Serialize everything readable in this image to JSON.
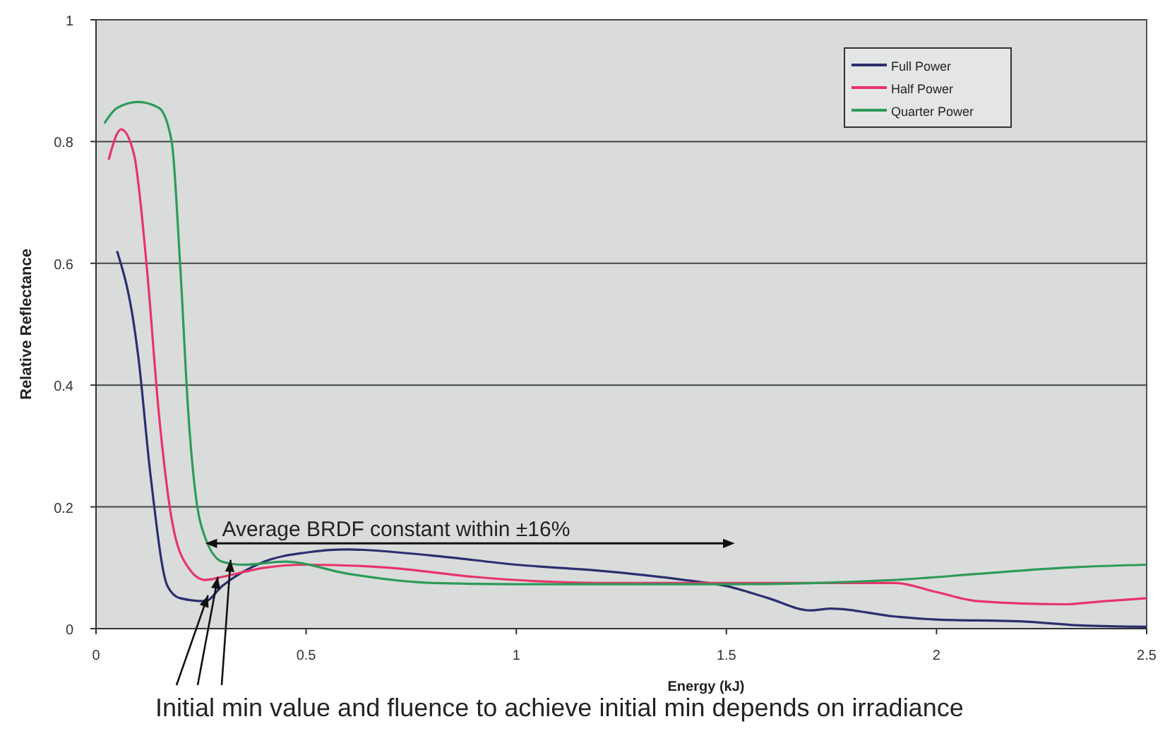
{
  "chart_data": {
    "type": "line",
    "xlabel": "Energy (kJ)",
    "ylabel": "Relative Reflectance",
    "xlim": [
      0,
      2.5
    ],
    "ylim": [
      0,
      1
    ],
    "xticks": [
      0,
      0.5,
      1,
      1.5,
      2,
      2.5
    ],
    "yticks": [
      0,
      0.2,
      0.4,
      0.6,
      0.8,
      1
    ],
    "grid": "y",
    "legend": "top right",
    "marker": "none",
    "line_style": "solid",
    "annotations": [
      "Average BRDF constant within ±16%",
      {
        "text": "Initial min value and fluence to achieve initial min depends on irradiance",
        "x": 0.29,
        "y": 0.085
      }
    ],
    "series": [
      {
        "name": "Full Power",
        "color": "#2a2f6e",
        "x": [
          0.05,
          0.09,
          0.1,
          0.13,
          0.17,
          0.2,
          0.26,
          0.3,
          0.4,
          0.5,
          0.6,
          0.8,
          1.0,
          1.2,
          1.4,
          1.5,
          1.6,
          1.7,
          1.75,
          1.9,
          2.0,
          2.2,
          2.35,
          2.5
        ],
        "values": [
          0.62,
          0.5,
          0.45,
          0.25,
          0.07,
          0.05,
          0.045,
          0.07,
          0.11,
          0.125,
          0.13,
          0.12,
          0.105,
          0.095,
          0.08,
          0.07,
          0.05,
          0.03,
          0.033,
          0.02,
          0.015,
          0.012,
          0.005,
          0.003
        ]
      },
      {
        "name": "Half Power",
        "color": "#e8336b",
        "x": [
          0.03,
          0.06,
          0.09,
          0.12,
          0.15,
          0.18,
          0.22,
          0.26,
          0.3,
          0.4,
          0.5,
          0.7,
          0.9,
          1.2,
          1.5,
          1.9,
          2.0,
          2.1,
          2.3,
          2.4,
          2.5
        ],
        "values": [
          0.77,
          0.82,
          0.78,
          0.6,
          0.35,
          0.18,
          0.1,
          0.08,
          0.085,
          0.1,
          0.105,
          0.1,
          0.085,
          0.075,
          0.075,
          0.075,
          0.06,
          0.045,
          0.04,
          0.045,
          0.05
        ]
      },
      {
        "name": "Quarter Power",
        "color": "#2e9a5a",
        "x": [
          0.02,
          0.05,
          0.1,
          0.15,
          0.18,
          0.2,
          0.22,
          0.25,
          0.3,
          0.35,
          0.45,
          0.6,
          0.8,
          1.0,
          1.5,
          1.9,
          2.1,
          2.3,
          2.5
        ],
        "values": [
          0.83,
          0.855,
          0.865,
          0.855,
          0.8,
          0.6,
          0.35,
          0.17,
          0.11,
          0.105,
          0.11,
          0.09,
          0.075,
          0.073,
          0.073,
          0.08,
          0.09,
          0.1,
          0.105
        ]
      }
    ]
  }
}
